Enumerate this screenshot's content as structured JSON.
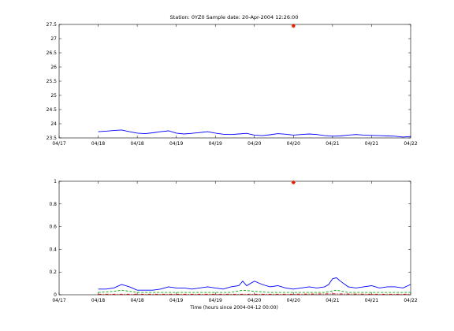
{
  "chart_data": [
    {
      "type": "line",
      "title": "Station: 0YZ0 Sample date: 20-Apr-2004 12:26:00",
      "xlabel": "",
      "ylabel": "",
      "xlim": [
        0,
        4.5
      ],
      "ylim": [
        23.5,
        27.5
      ],
      "xtick_labels": [
        "04/17",
        "04/18",
        "04/18",
        "04/19",
        "04/19",
        "04/20",
        "04/20",
        "04/21",
        "04/21",
        "04/22"
      ],
      "ytick_labels": [
        "23.5",
        "24",
        "24.5",
        "25",
        "25.5",
        "26",
        "26.5",
        "27",
        "27.5"
      ],
      "yticks": [
        23.5,
        24,
        24.5,
        25,
        25.5,
        26,
        26.5,
        27,
        27.5
      ],
      "grid": false,
      "series": [
        {
          "color": "#0000ff",
          "style": "solid",
          "x": [
            0.5,
            0.6,
            0.7,
            0.8,
            0.9,
            1.0,
            1.1,
            1.2,
            1.3,
            1.4,
            1.5,
            1.6,
            1.7,
            1.8,
            1.9,
            2.0,
            2.1,
            2.2,
            2.3,
            2.4,
            2.5,
            2.6,
            2.7,
            2.8,
            2.9,
            3.0,
            3.1,
            3.2,
            3.3,
            3.4,
            3.5,
            3.6,
            3.7,
            3.8,
            3.9,
            4.0,
            4.1,
            4.2,
            4.3,
            4.4,
            4.5
          ],
          "y": [
            23.72,
            23.74,
            23.76,
            23.78,
            23.72,
            23.67,
            23.65,
            23.68,
            23.72,
            23.75,
            23.67,
            23.64,
            23.66,
            23.69,
            23.72,
            23.67,
            23.63,
            23.62,
            23.64,
            23.66,
            23.6,
            23.58,
            23.61,
            23.65,
            23.63,
            23.6,
            23.62,
            23.64,
            23.62,
            23.58,
            23.56,
            23.57,
            23.6,
            23.62,
            23.6,
            23.59,
            23.58,
            23.57,
            23.56,
            23.53,
            23.55
          ]
        }
      ],
      "markers": [
        {
          "x": 3.0,
          "y": 27.45,
          "color": "#dd2200"
        }
      ]
    },
    {
      "type": "line",
      "title": "",
      "xlabel": "Time (hours since 2004-04-12 00:00)",
      "ylabel": "",
      "xlim": [
        0,
        4.5
      ],
      "ylim": [
        0,
        1
      ],
      "xtick_labels": [
        "04/17",
        "04/18",
        "04/18",
        "04/19",
        "04/19",
        "04/20",
        "04/20",
        "04/21",
        "04/21",
        "04/22"
      ],
      "ytick_labels": [
        "0",
        "0.2",
        "0.4",
        "0.6",
        "0.8",
        "1"
      ],
      "yticks": [
        0,
        0.2,
        0.4,
        0.6,
        0.8,
        1
      ],
      "grid": false,
      "series": [
        {
          "color": "#0000ff",
          "style": "solid",
          "x": [
            0.5,
            0.6,
            0.7,
            0.8,
            0.9,
            1.0,
            1.1,
            1.2,
            1.3,
            1.4,
            1.5,
            1.6,
            1.7,
            1.8,
            1.9,
            2.0,
            2.1,
            2.2,
            2.3,
            2.35,
            2.4,
            2.5,
            2.6,
            2.7,
            2.8,
            2.9,
            3.0,
            3.1,
            3.2,
            3.3,
            3.4,
            3.45,
            3.5,
            3.55,
            3.6,
            3.7,
            3.8,
            3.9,
            4.0,
            4.1,
            4.2,
            4.3,
            4.4,
            4.5
          ],
          "y": [
            0.05,
            0.05,
            0.06,
            0.09,
            0.07,
            0.04,
            0.04,
            0.04,
            0.05,
            0.07,
            0.06,
            0.06,
            0.05,
            0.06,
            0.07,
            0.06,
            0.05,
            0.07,
            0.08,
            0.12,
            0.08,
            0.12,
            0.09,
            0.07,
            0.08,
            0.06,
            0.05,
            0.06,
            0.07,
            0.06,
            0.07,
            0.09,
            0.14,
            0.15,
            0.12,
            0.07,
            0.06,
            0.07,
            0.08,
            0.06,
            0.07,
            0.07,
            0.06,
            0.09
          ]
        },
        {
          "color": "#00aa00",
          "style": "dashed",
          "x": [
            0.5,
            0.7,
            0.8,
            1.0,
            1.2,
            1.4,
            1.6,
            1.8,
            2.0,
            2.2,
            2.35,
            2.5,
            2.7,
            2.9,
            3.0,
            3.2,
            3.4,
            3.55,
            3.7,
            3.9,
            4.1,
            4.3,
            4.5
          ],
          "y": [
            0.02,
            0.03,
            0.04,
            0.02,
            0.02,
            0.02,
            0.02,
            0.02,
            0.02,
            0.02,
            0.04,
            0.03,
            0.02,
            0.02,
            0.02,
            0.02,
            0.02,
            0.04,
            0.02,
            0.02,
            0.02,
            0.02,
            0.02
          ]
        },
        {
          "color": "#dd0000",
          "style": "dashdot",
          "x": [
            0.5,
            1.0,
            1.5,
            2.0,
            2.5,
            3.0,
            3.5,
            4.0,
            4.5
          ],
          "y": [
            0.005,
            0.005,
            0.005,
            0.005,
            0.005,
            0.005,
            0.008,
            0.005,
            0.005
          ]
        }
      ],
      "markers": [
        {
          "x": 3.0,
          "y": 0.99,
          "color": "#dd2200"
        }
      ]
    }
  ]
}
